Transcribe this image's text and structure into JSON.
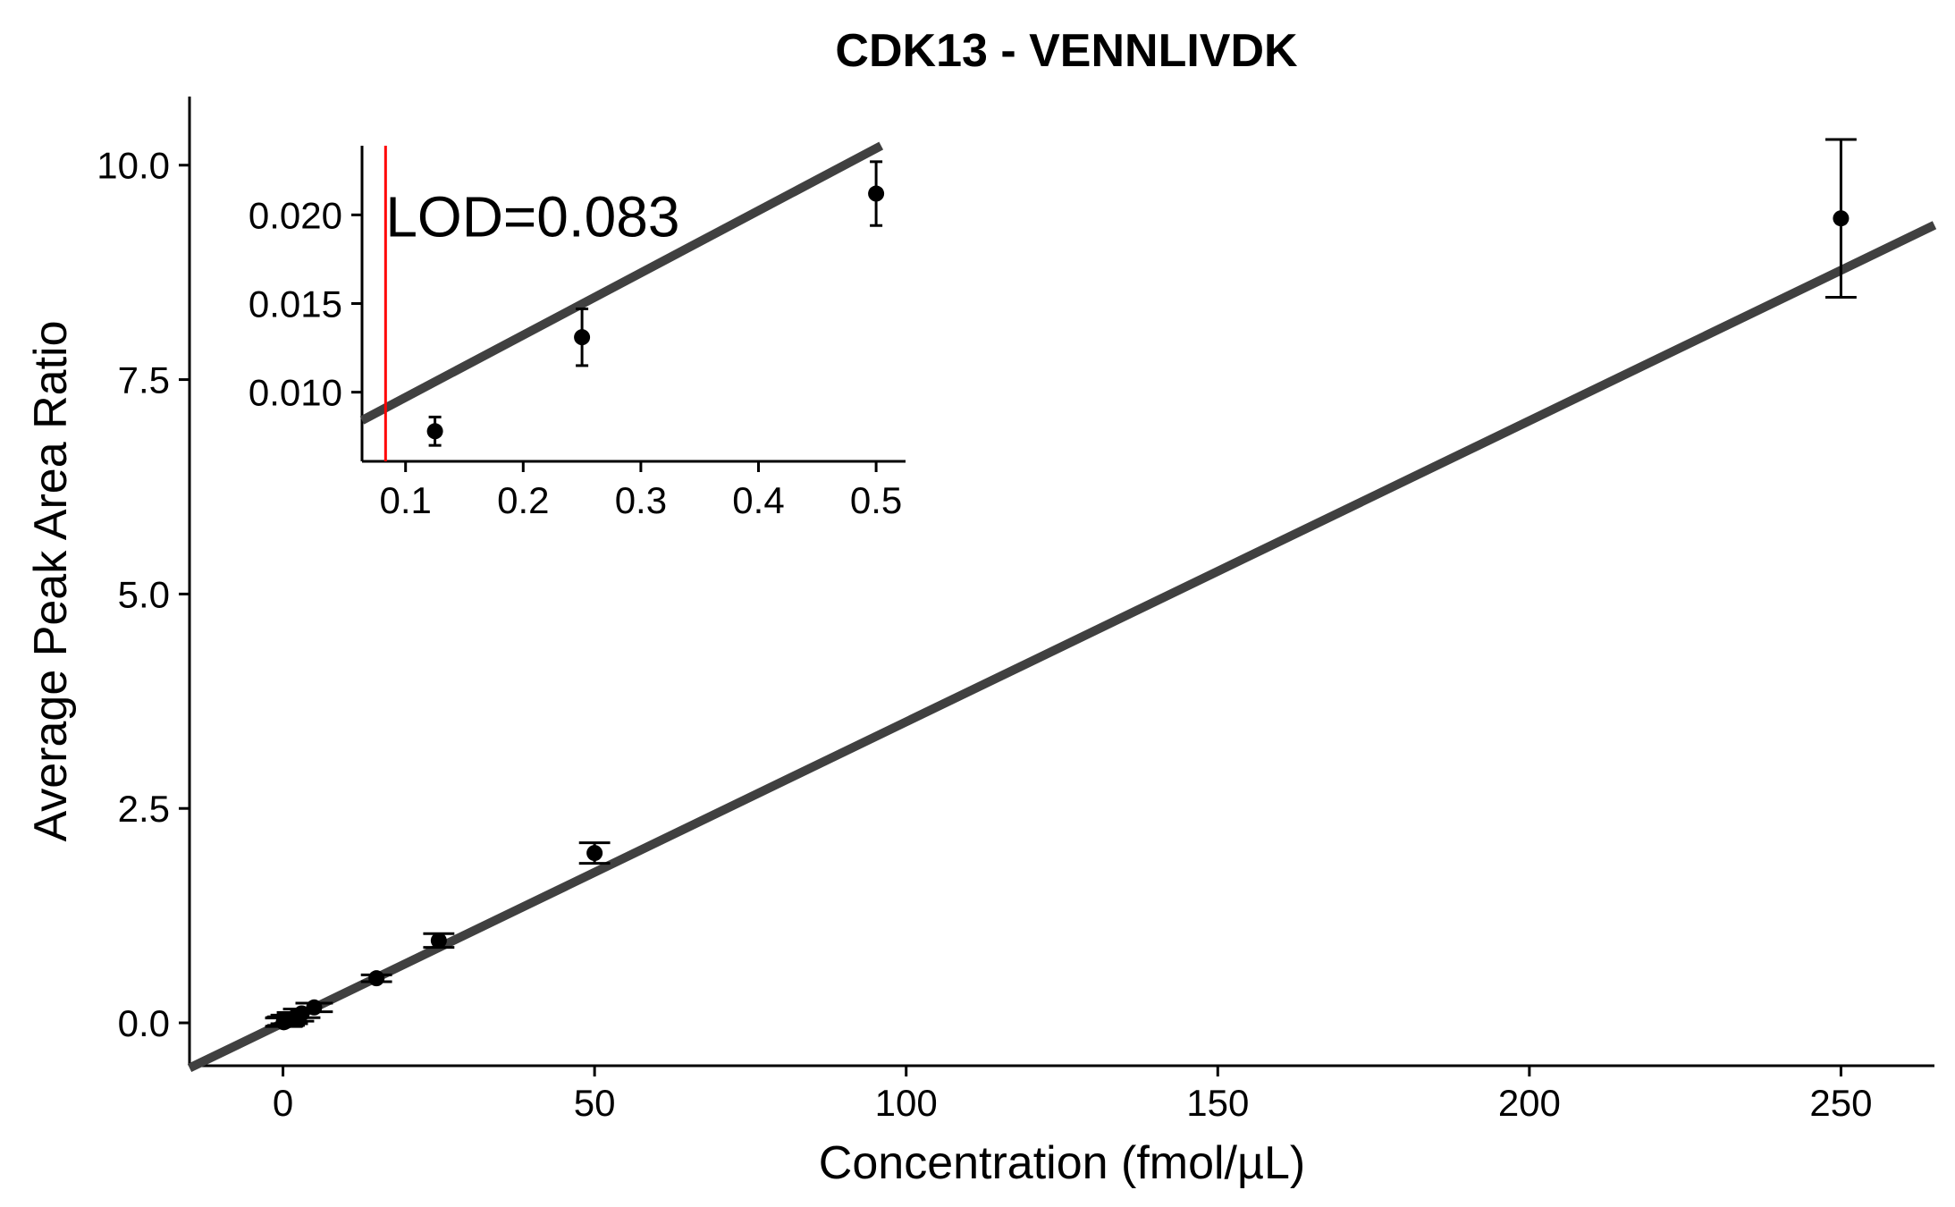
{
  "chart_data": {
    "type": "scatter",
    "title": "CDK13 - VENNLIVDK",
    "xlabel": "Concentration (fmol/µL)",
    "ylabel": "Average Peak Area Ratio",
    "colors": {
      "points": "#000000",
      "fit_line": "#404040",
      "lod_line": "#ff0000",
      "lod_text": "#ff0000"
    },
    "main": {
      "xlim": [
        -15,
        265
      ],
      "ylim": [
        -0.5,
        10.8
      ],
      "xticks": [
        0,
        50,
        100,
        150,
        200,
        250
      ],
      "xtick_labels": [
        "0",
        "50",
        "100",
        "150",
        "200",
        "250"
      ],
      "yticks": [
        0,
        2.5,
        5,
        7.5,
        10
      ],
      "ytick_labels": [
        "0.0",
        "2.5",
        "5.0",
        "7.5",
        "10.0"
      ],
      "fit": {
        "slope": 0.0351,
        "intercept": -0.0001
      },
      "points": [
        {
          "x": 0.125,
          "y": 0.007,
          "err": 0.05,
          "cap": 3
        },
        {
          "x": 0.25,
          "y": 0.013,
          "err": 0.05,
          "cap": 3
        },
        {
          "x": 0.5,
          "y": 0.021,
          "err": 0.05,
          "cap": 3
        },
        {
          "x": 1,
          "y": 0.04,
          "err": 0.05,
          "cap": 3
        },
        {
          "x": 2,
          "y": 0.07,
          "err": 0.05,
          "cap": 3
        },
        {
          "x": 3,
          "y": 0.11,
          "err": 0.05,
          "cap": 3
        },
        {
          "x": 5,
          "y": 0.18,
          "err": 0.05,
          "cap": 3
        },
        {
          "x": 15,
          "y": 0.52,
          "err": 0.04,
          "cap": 2.5
        },
        {
          "x": 25,
          "y": 0.96,
          "err": 0.08,
          "cap": 2.5
        },
        {
          "x": 50,
          "y": 1.98,
          "err": 0.12,
          "cap": 2.5
        },
        {
          "x": 250,
          "y": 9.38,
          "err": 0.92,
          "cap": 2.5
        }
      ]
    },
    "inset": {
      "xlim": [
        0.063,
        0.525
      ],
      "ylim": [
        0.0061,
        0.0239
      ],
      "xticks": [
        0.1,
        0.2,
        0.3,
        0.4,
        0.5
      ],
      "xtick_labels": [
        "0.1",
        "0.2",
        "0.3",
        "0.4",
        "0.5"
      ],
      "yticks": [
        0.01,
        0.015,
        0.02
      ],
      "ytick_labels": [
        "0.010",
        "0.015",
        "0.020"
      ],
      "fit": {
        "slope": 0.0351,
        "intercept": 0.0062
      },
      "lod": {
        "value": 0.083,
        "label": "LOD=0.083"
      },
      "points": [
        {
          "x": 0.125,
          "y": 0.0078,
          "err": 0.0008
        },
        {
          "x": 0.25,
          "y": 0.0131,
          "err": 0.0016
        },
        {
          "x": 0.5,
          "y": 0.0212,
          "err": 0.0018
        }
      ]
    }
  }
}
